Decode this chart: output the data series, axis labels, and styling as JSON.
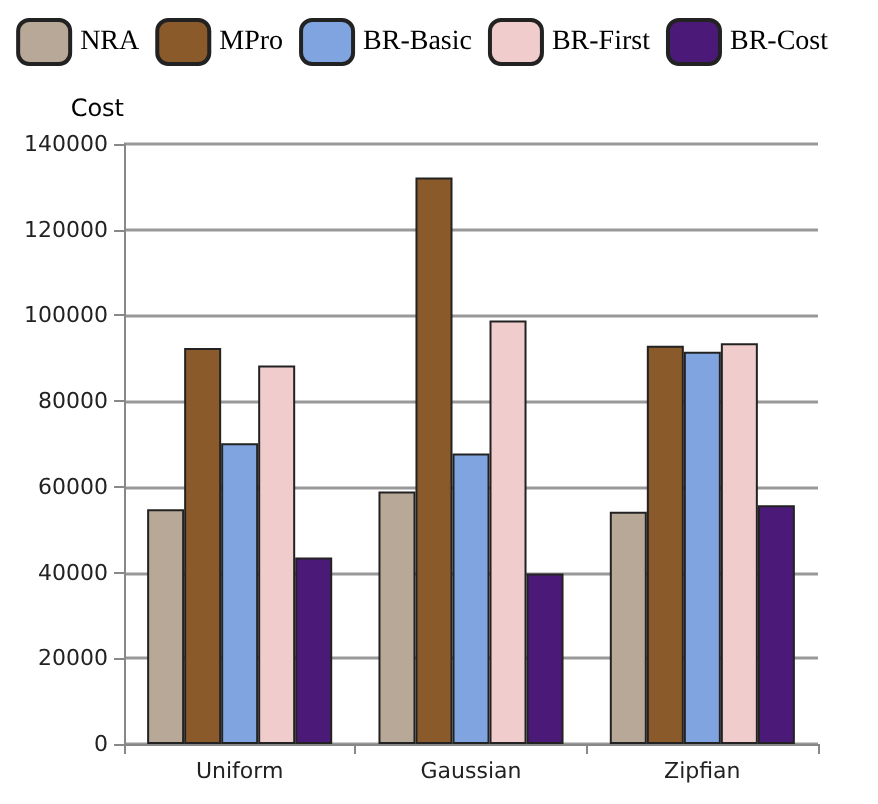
{
  "chart_data": {
    "type": "bar",
    "ylabel": "Cost",
    "categories": [
      "Uniform",
      "Gaussian",
      "Zipfian"
    ],
    "series": [
      {
        "name": "NRA",
        "color": "#b8a898",
        "values": [
          54800,
          58900,
          54200
        ]
      },
      {
        "name": "MPro",
        "color": "#8b5a2b",
        "values": [
          92400,
          132200,
          92900
        ]
      },
      {
        "name": "BR-Basic",
        "color": "#7fa4e0",
        "values": [
          70200,
          67800,
          91500
        ]
      },
      {
        "name": "BR-First",
        "color": "#f0cccc",
        "values": [
          88300,
          98800,
          93500
        ]
      },
      {
        "name": "BR-Cost",
        "color": "#4b1a78",
        "values": [
          43500,
          39800,
          55700
        ]
      }
    ],
    "ylim": [
      0,
      140000
    ],
    "yticks": [
      0,
      20000,
      40000,
      60000,
      80000,
      100000,
      120000,
      140000
    ],
    "grid": "y",
    "legend": "top"
  }
}
